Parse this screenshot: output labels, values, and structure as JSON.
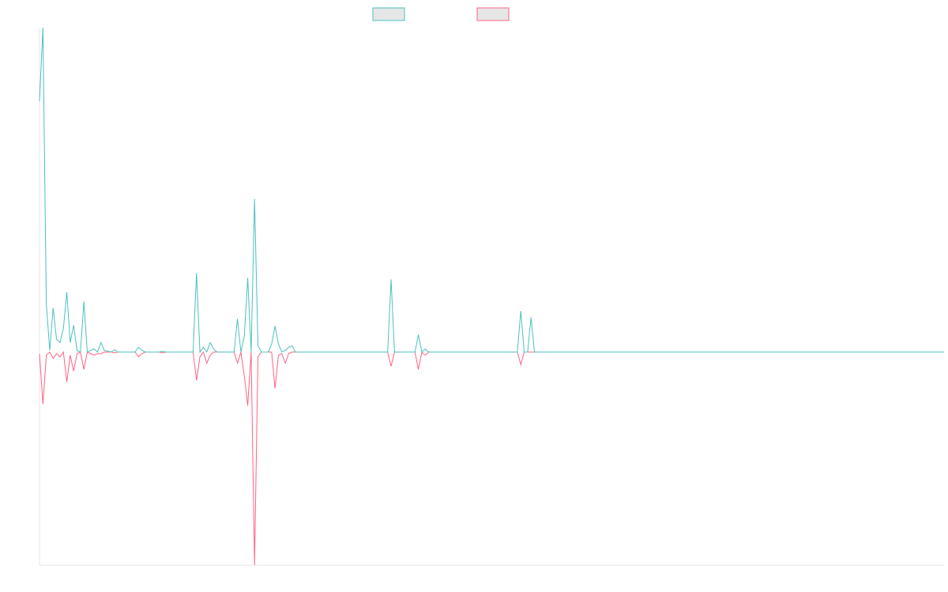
{
  "chart_data": {
    "type": "line",
    "x": [
      0,
      1,
      2,
      3,
      4,
      5,
      6,
      7,
      8,
      9,
      10,
      11,
      12,
      13,
      14,
      15,
      16,
      17,
      18,
      19,
      21,
      22,
      23,
      28,
      29,
      30,
      31,
      35,
      36,
      37,
      45,
      46,
      47,
      48,
      49,
      50,
      51,
      52,
      53,
      54,
      55,
      56,
      57,
      58,
      59,
      60,
      61,
      62,
      63,
      64,
      65,
      66,
      67,
      68,
      69,
      70,
      71,
      72,
      73,
      74,
      75,
      102,
      103,
      104,
      110,
      111,
      112,
      113,
      114,
      140,
      141,
      142,
      143,
      144,
      145,
      265
    ],
    "series": [
      {
        "color": "#4bc0c0",
        "values": [
          318,
          411,
          61,
          2,
          56,
          16,
          12,
          30,
          76,
          12,
          34,
          2,
          0,
          64,
          0,
          2,
          4,
          0,
          12,
          2,
          0,
          3,
          0,
          0,
          6,
          2,
          0,
          0,
          1,
          0,
          0,
          100,
          0,
          6,
          0,
          12,
          4,
          0,
          0,
          0,
          0,
          0,
          0,
          42,
          0,
          20,
          94,
          0,
          194,
          8,
          0,
          0,
          0,
          10,
          33,
          10,
          0,
          2,
          6,
          8,
          0,
          0,
          92,
          0,
          0,
          22,
          0,
          4,
          0,
          0,
          52,
          0,
          0,
          44,
          0,
          0
        ]
      },
      {
        "color": "#ff6384",
        "values": [
          -2,
          -66,
          -4,
          0,
          -8,
          -2,
          -6,
          0,
          -38,
          -4,
          -24,
          -2,
          0,
          -22,
          0,
          -2,
          -4,
          -2,
          -2,
          0,
          0,
          -1,
          0,
          0,
          -6,
          -2,
          0,
          0,
          -1,
          0,
          0,
          -36,
          -6,
          0,
          -14,
          -4,
          0,
          0,
          0,
          0,
          0,
          0,
          0,
          -14,
          0,
          -30,
          -68,
          0,
          -270,
          -6,
          0,
          0,
          0,
          0,
          -46,
          -4,
          -2,
          -14,
          -2,
          0,
          0,
          0,
          -18,
          0,
          0,
          -22,
          0,
          -4,
          0,
          0,
          -16,
          0,
          0,
          0,
          0,
          0
        ]
      }
    ],
    "xlim": [
      0,
      265
    ],
    "ylim": [
      -270,
      411
    ]
  }
}
